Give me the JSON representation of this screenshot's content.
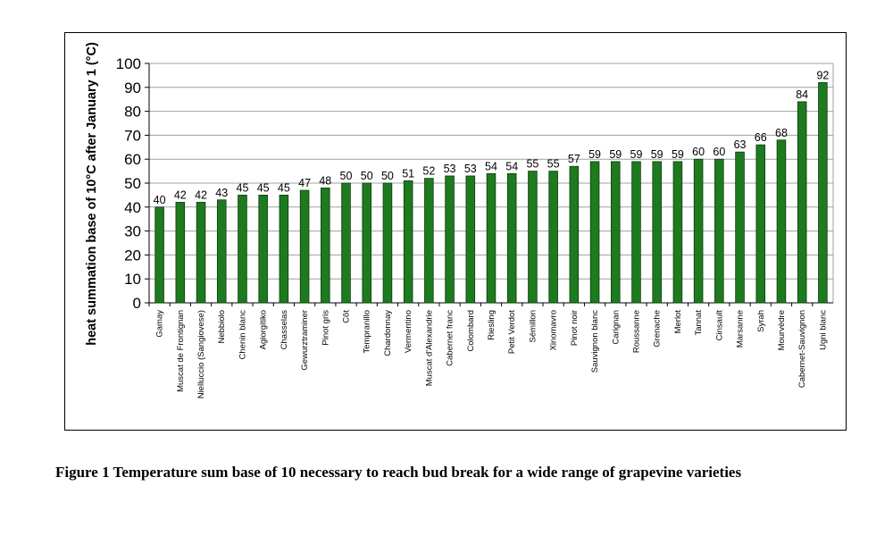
{
  "caption": "Figure 1 Temperature sum base of 10 necessary to reach bud break for a wide range of grapevine varieties",
  "chart_data": {
    "type": "bar",
    "title": "",
    "xlabel": "",
    "ylabel": "heat summation base of 10°C after January 1 (°C)",
    "ylim": [
      0,
      100
    ],
    "yticks": [
      0,
      10,
      20,
      30,
      40,
      50,
      60,
      70,
      80,
      90,
      100
    ],
    "grid": true,
    "bar_color": "#1e7a1e",
    "categories": [
      "Gamay",
      "Muscat de Frontignan",
      "Nielluccio (Sangiovese)",
      "Nebbiolo",
      "Chenin blanc",
      "Agiorgitiko",
      "Chasselas",
      "Gewurztraminer",
      "Pinot gris",
      "Côt",
      "Tempranillo",
      "Chardonnay",
      "Vermentino",
      "Muscat d'Alexandrie",
      "Cabernet franc",
      "Colombard",
      "Riesling",
      "Petit Verdot",
      "Sémillon",
      "Xinomavro",
      "Pinot noir",
      "Sauvignon blanc",
      "Carignan",
      "Roussanne",
      "Grenache",
      "Merlot",
      "Tannat",
      "Cinsault",
      "Marsanne",
      "Syrah",
      "Mourvèdre",
      "Cabernet-Sauvignon",
      "Ugni blanc"
    ],
    "values": [
      40,
      42,
      42,
      43,
      45,
      45,
      45,
      47,
      48,
      50,
      50,
      50,
      51,
      52,
      53,
      53,
      54,
      54,
      55,
      55,
      57,
      59,
      59,
      59,
      59,
      59,
      60,
      60,
      63,
      66,
      68,
      84,
      92
    ]
  }
}
